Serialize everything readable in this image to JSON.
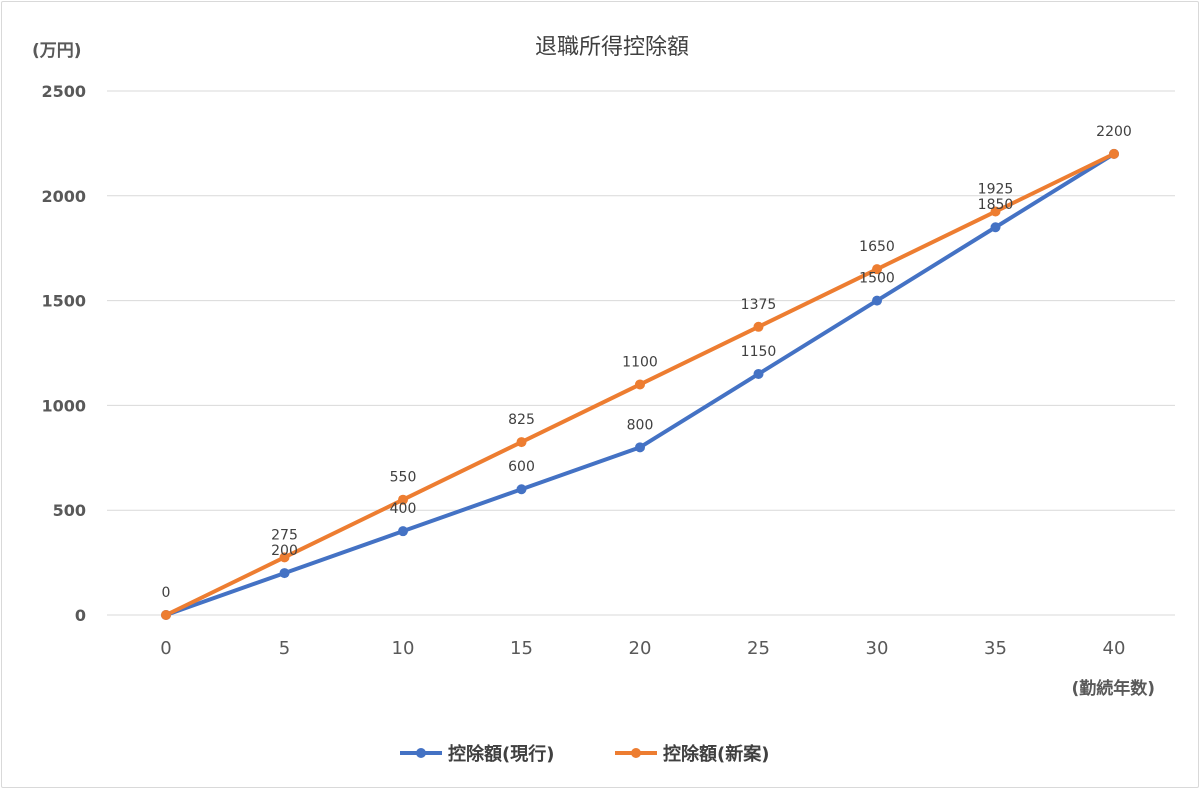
{
  "chart_data": {
    "type": "line",
    "title": "退職所得控除額",
    "ylabel": "(万円)",
    "xlabel": "(勤続年数)",
    "x": [
      0,
      5,
      10,
      15,
      20,
      25,
      30,
      35,
      40
    ],
    "ylim": [
      0,
      2500
    ],
    "yticks": [
      0,
      500,
      1000,
      1500,
      2000,
      2500
    ],
    "grid": true,
    "legend_position": "bottom",
    "series": [
      {
        "name": "控除額(現行)",
        "color": "#4472c4",
        "values": [
          0,
          200,
          400,
          600,
          800,
          1150,
          1500,
          1850,
          2200
        ]
      },
      {
        "name": "控除額(新案)",
        "color": "#ed7d31",
        "values": [
          0,
          275,
          550,
          825,
          1100,
          1375,
          1650,
          1925,
          2200
        ]
      }
    ]
  }
}
